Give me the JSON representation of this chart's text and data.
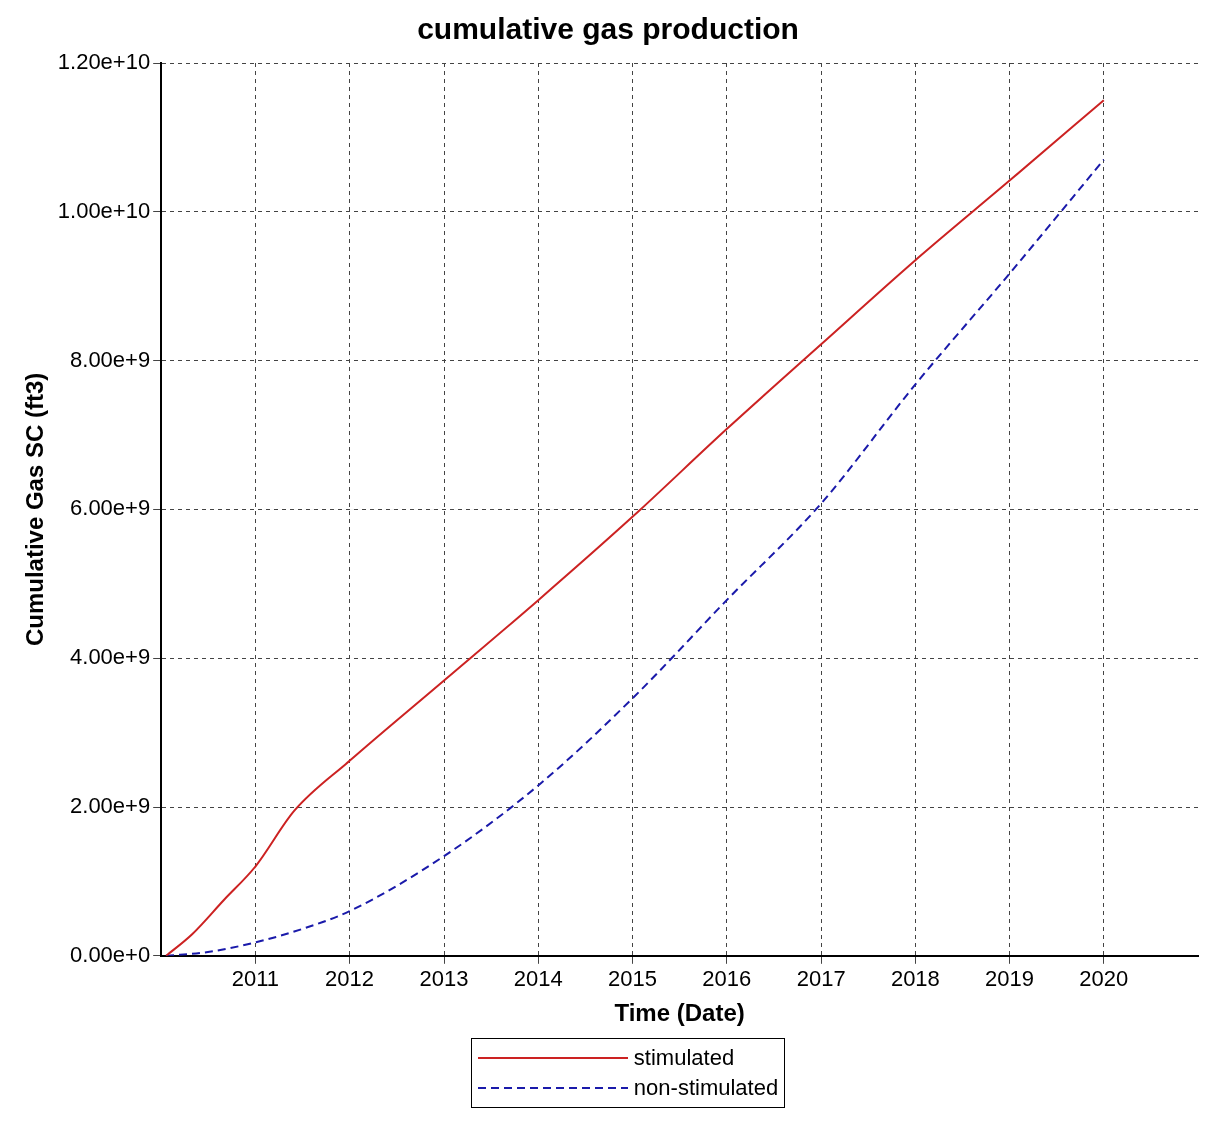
{
  "chart_data": {
    "type": "line",
    "title": "cumulative gas production",
    "xlabel": "Time (Date)",
    "ylabel": "Cumulative Gas SC (ft3)",
    "xlim": [
      "2010-01-01",
      "2020-12-31"
    ],
    "xticks": [
      {
        "value": "2011-01-01",
        "label": "2011"
      },
      {
        "value": "2012-01-01",
        "label": "2012"
      },
      {
        "value": "2013-01-01",
        "label": "2013"
      },
      {
        "value": "2014-01-01",
        "label": "2014"
      },
      {
        "value": "2015-01-01",
        "label": "2015"
      },
      {
        "value": "2016-01-01",
        "label": "2016"
      },
      {
        "value": "2017-01-01",
        "label": "2017"
      },
      {
        "value": "2018-01-01",
        "label": "2018"
      },
      {
        "value": "2019-01-01",
        "label": "2019"
      },
      {
        "value": "2020-01-01",
        "label": "2020"
      }
    ],
    "ylim": [
      0,
      12000000000
    ],
    "yticks": [
      {
        "value": 0,
        "label": "0.00e+0"
      },
      {
        "value": 2000000000,
        "label": "2.00e+9"
      },
      {
        "value": 4000000000,
        "label": "4.00e+9"
      },
      {
        "value": 6000000000,
        "label": "6.00e+9"
      },
      {
        "value": 8000000000,
        "label": "8.00e+9"
      },
      {
        "value": 10000000000,
        "label": "1.00e+10"
      },
      {
        "value": 12000000000,
        "label": "1.20e+10"
      }
    ],
    "grid": true,
    "legend": "bottom",
    "marker": "none",
    "series": [
      {
        "name": "stimulated",
        "color": "#cc2222",
        "line_style": "solid",
        "x": [
          "2010-01-20",
          "2010-05-01",
          "2010-09-01",
          "2011-01-01",
          "2011-06-01",
          "2012-01-01",
          "2013-01-01",
          "2014-01-01",
          "2015-01-01",
          "2016-01-01",
          "2017-01-01",
          "2018-01-01",
          "2019-01-01",
          "2020-01-01"
        ],
        "values": [
          0,
          290000000,
          750000000,
          1200000000,
          1950000000,
          2620000000,
          3700000000,
          4780000000,
          5900000000,
          7080000000,
          8220000000,
          9350000000,
          10420000000,
          11500000000
        ]
      },
      {
        "name": "non-stimulated",
        "color": "#1a1aaa",
        "line_style": "dashed",
        "x": [
          "2010-01-20",
          "2010-07-01",
          "2011-01-01",
          "2011-07-01",
          "2012-01-01",
          "2013-01-01",
          "2014-01-01",
          "2015-01-01",
          "2016-01-01",
          "2017-01-01",
          "2018-01-01",
          "2019-01-01",
          "2020-01-01"
        ],
        "values": [
          0,
          50000000,
          180000000,
          360000000,
          600000000,
          1340000000,
          2290000000,
          3460000000,
          4780000000,
          6080000000,
          7680000000,
          9170000000,
          10700000000
        ]
      }
    ]
  }
}
